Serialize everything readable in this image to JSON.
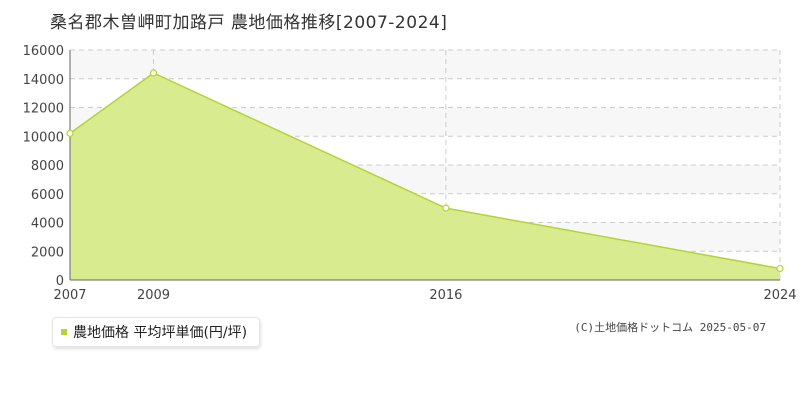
{
  "title": "桑名郡木曽岬町加路戸 農地価格推移[2007-2024]",
  "legend": {
    "label": "農地価格 平均坪単価(円/坪)"
  },
  "copyright": "(C)土地価格ドットコム 2025-05-07",
  "colors": {
    "fill": "#d9eb8f",
    "line": "#b5d334",
    "band": "#f7f7f7",
    "grid": "#cccccc",
    "axis": "#666666"
  },
  "chart_data": {
    "type": "area",
    "title": "桑名郡木曽岬町加路戸 農地価格推移[2007-2024]",
    "x": [
      "2007",
      "2009",
      "2016",
      "2024"
    ],
    "series": [
      {
        "name": "農地価格 平均坪単価(円/坪)",
        "values": [
          10200,
          14400,
          5000,
          800
        ]
      }
    ],
    "ylim": [
      0,
      16000
    ],
    "yticks": [
      0,
      2000,
      4000,
      6000,
      8000,
      10000,
      12000,
      14000,
      16000
    ],
    "xticks": [
      "2007",
      "2009",
      "2016",
      "2024"
    ],
    "grid": true,
    "legend_position": "bottom-left"
  }
}
